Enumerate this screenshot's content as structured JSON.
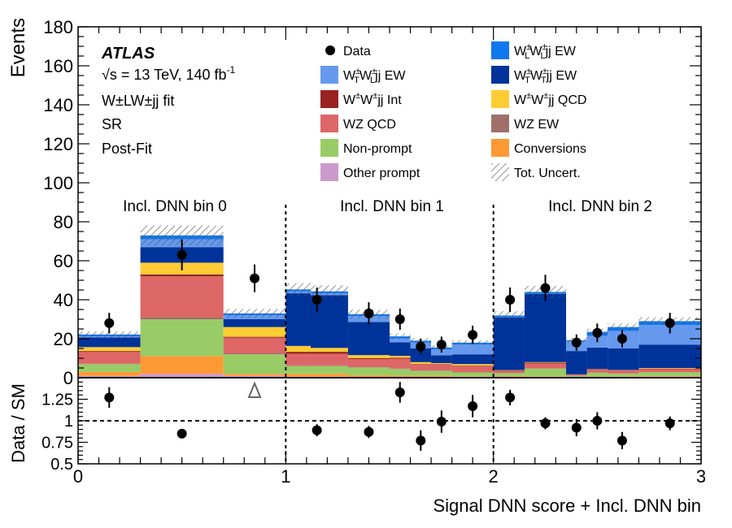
{
  "chart_data": [
    {
      "type": "bar",
      "stacked": true,
      "panel": "main",
      "ylabel": "Events",
      "xlabel": "Signal DNN score + Incl. DNN bin",
      "ylim": [
        0,
        180
      ],
      "xlim": [
        0,
        3
      ],
      "yticks": [
        0,
        20,
        40,
        60,
        80,
        100,
        120,
        140,
        160,
        180
      ],
      "xticks": [
        0,
        1,
        2,
        3
      ],
      "annotations": {
        "experiment": "ATLAS",
        "energy_prefix": "√s = 13 TeV, 140 fb",
        "energy_sup": "-1",
        "fit": "W±LW±jj fit",
        "region": "SR",
        "stage": "Post-Fit",
        "region_labels": [
          "Incl. DNN bin 0",
          "Incl. DNN bin 1",
          "Incl. DNN bin 2"
        ]
      },
      "legend_position": "top-right",
      "bin_edges": [
        0,
        0.3,
        0.7,
        1.0,
        1.12,
        1.3,
        1.5,
        1.6,
        1.7,
        1.8,
        2.0,
        2.15,
        2.35,
        2.45,
        2.55,
        2.7,
        3.0
      ],
      "series": [
        {
          "key": "other",
          "name": "Other prompt",
          "color": "#cc99cc",
          "values": [
            1,
            2,
            1,
            0.5,
            0.5,
            0.3,
            0.3,
            0.3,
            0.3,
            0.2,
            0.2,
            0.2,
            0.1,
            0.2,
            0.2,
            0.3
          ]
        },
        {
          "key": "conv",
          "name": "Conversions",
          "color": "#ff9933",
          "values": [
            2,
            9,
            1,
            1.5,
            1.5,
            1,
            0.7,
            0.7,
            0.7,
            0.5,
            0.6,
            0.5,
            0.3,
            0.4,
            0.4,
            0.5
          ]
        },
        {
          "key": "nonprompt",
          "name": "Non-prompt",
          "color": "#99cc66",
          "values": [
            4,
            19,
            10,
            4,
            4,
            4,
            3.5,
            2.5,
            2.5,
            2,
            1.5,
            4,
            0.5,
            2,
            1.5,
            2
          ]
        },
        {
          "key": "wzew",
          "name": "WZ EW",
          "color": "#a06f6a",
          "values": [
            0.2,
            1,
            0.5,
            0.3,
            0.3,
            0.3,
            0.2,
            0.2,
            0.2,
            0.2,
            0.1,
            0.1,
            0.1,
            0.1,
            0.1,
            0.1
          ]
        },
        {
          "key": "wzqcd",
          "name": "WZ QCD",
          "color": "#dd6666",
          "values": [
            6,
            21,
            8,
            6,
            6,
            4,
            5,
            3,
            3,
            3,
            1,
            2.5,
            0.5,
            1.5,
            1.5,
            1.5
          ]
        },
        {
          "key": "int",
          "name": "W±W±jj Int",
          "color": "#992222",
          "values": [
            0.5,
            1,
            0.5,
            1,
            1,
            0.5,
            0.5,
            0.3,
            0.3,
            0.3,
            0.3,
            0.4,
            0.1,
            0.2,
            0.2,
            0.3
          ]
        },
        {
          "key": "qcd",
          "name": "W±W±jj QCD",
          "color": "#ffcc33",
          "values": [
            2,
            6,
            5,
            3,
            2,
            1.5,
            1,
            1,
            0.5,
            0.8,
            0.2,
            0.3,
            0.1,
            0.1,
            0.1,
            0.3
          ]
        },
        {
          "key": "tt",
          "name": "W±TW±Tjj EW",
          "color": "#003399",
          "values": [
            5,
            8,
            4,
            27,
            27,
            17,
            7,
            7,
            4,
            5,
            27,
            35,
            12,
            11,
            11,
            12
          ]
        },
        {
          "key": "tl",
          "name": "W±TW±Ljj EW",
          "color": "#6699ee",
          "values": [
            0.5,
            4,
            2,
            1,
            1,
            3,
            2,
            3,
            3,
            5,
            0,
            0,
            5,
            6,
            9,
            10
          ]
        },
        {
          "key": "ll",
          "name": "W±LW±Ljj EW",
          "color": "#1177ee",
          "values": [
            1,
            2,
            1,
            1,
            1,
            1,
            1,
            1,
            1,
            1,
            1,
            1,
            0.5,
            2,
            2,
            2
          ]
        }
      ],
      "data_points": {
        "name": "Data",
        "x": [
          0.15,
          0.5,
          0.85,
          1.15,
          1.4,
          1.55,
          1.65,
          1.75,
          1.9,
          2.08,
          2.25,
          2.4,
          2.5,
          2.62,
          2.85
        ],
        "y": [
          28,
          63,
          51,
          40,
          33,
          30,
          16,
          17,
          22,
          40,
          46,
          18,
          23,
          20,
          28
        ],
        "yerr": [
          5.3,
          7.9,
          7.1,
          6.3,
          5.7,
          5.5,
          4,
          4.1,
          4.7,
          6.3,
          6.8,
          4.2,
          4.8,
          4.5,
          5.3
        ]
      },
      "uncertainty_name": "Tot. Uncert.",
      "uncertainty_frac": 0.07
    },
    {
      "type": "scatter",
      "panel": "ratio",
      "ylabel": "Data / SM",
      "ylim": [
        0.5,
        1.5
      ],
      "yticks": [
        0.5,
        0.75,
        1,
        1.25
      ],
      "reference_line": 1,
      "x": [
        0.15,
        0.5,
        1.15,
        1.4,
        1.55,
        1.65,
        1.75,
        1.9,
        2.08,
        2.25,
        2.4,
        2.5,
        2.62,
        2.85
      ],
      "y": [
        1.27,
        0.85,
        0.89,
        0.87,
        1.33,
        0.77,
        0.99,
        1.17,
        1.27,
        0.97,
        0.92,
        1,
        0.77,
        0.97
      ],
      "yerr": [
        0.12,
        0.05,
        0.07,
        0.07,
        0.12,
        0.12,
        0.13,
        0.13,
        0.09,
        0.07,
        0.1,
        0.1,
        0.1,
        0.08
      ],
      "offscale_arrow_x": 0.85
    }
  ]
}
